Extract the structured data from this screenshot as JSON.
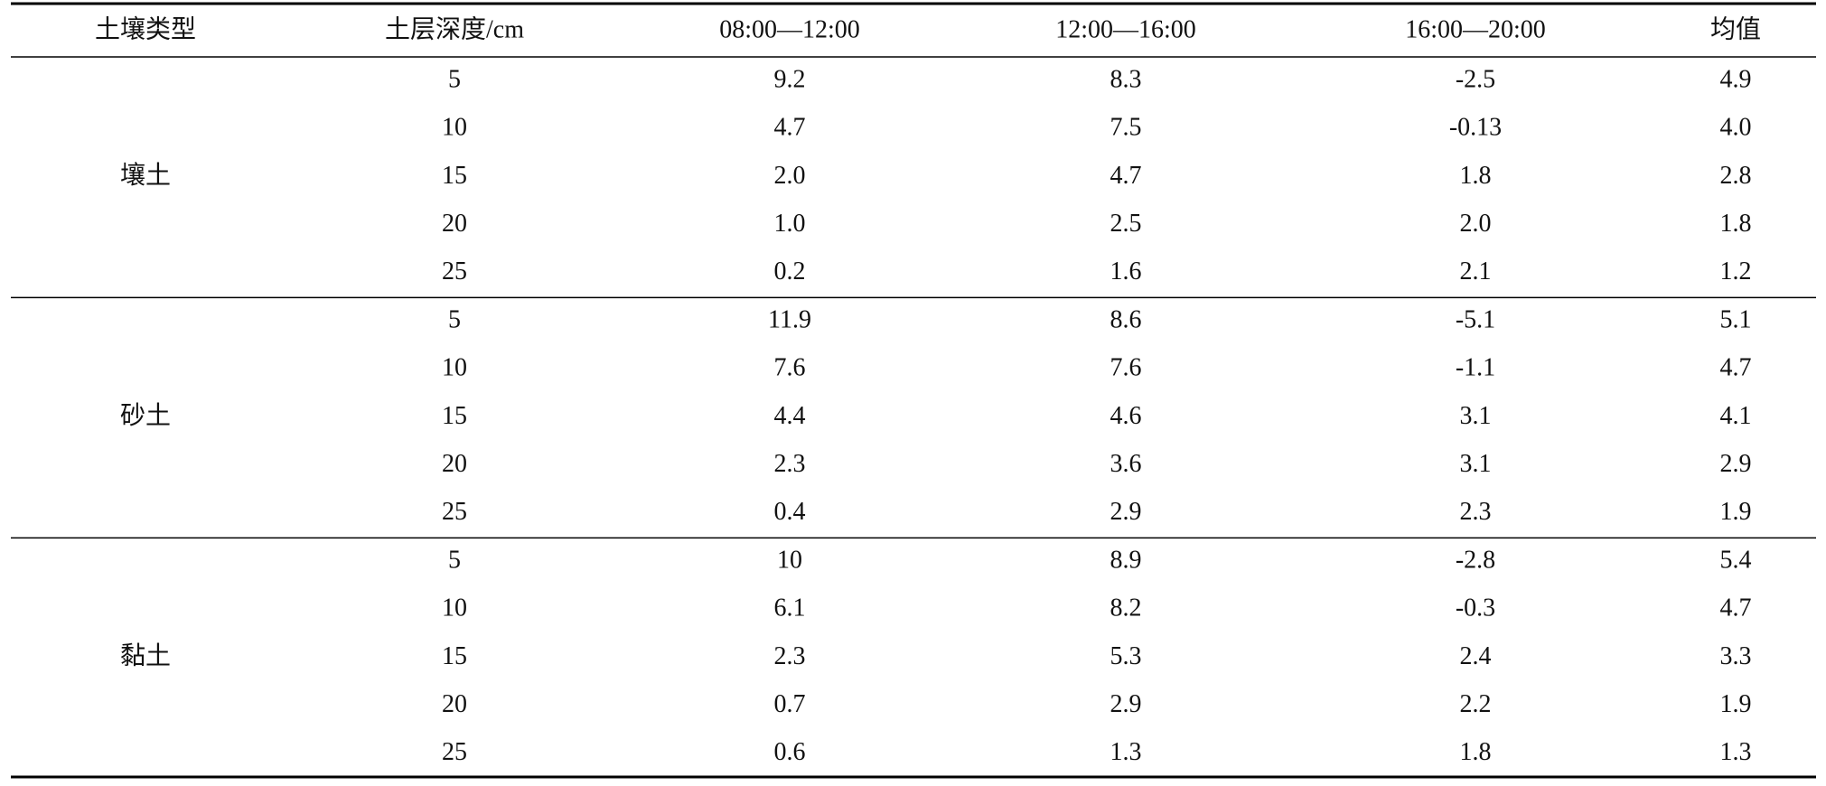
{
  "table": {
    "header": [
      "土壤类型",
      "土层深度/cm",
      "08:00—12:00",
      "12:00—16:00",
      "16:00—20:00",
      "均值"
    ],
    "groups": [
      {
        "soil_type": "壤土",
        "rows": [
          [
            "5",
            "9.2",
            "8.3",
            "-2.5",
            "4.9"
          ],
          [
            "10",
            "4.7",
            "7.5",
            "-0.13",
            "4.0"
          ],
          [
            "15",
            "2.0",
            "4.7",
            "1.8",
            "2.8"
          ],
          [
            "20",
            "1.0",
            "2.5",
            "2.0",
            "1.8"
          ],
          [
            "25",
            "0.2",
            "1.6",
            "2.1",
            "1.2"
          ]
        ]
      },
      {
        "soil_type": "砂土",
        "rows": [
          [
            "5",
            "11.9",
            "8.6",
            "-5.1",
            "5.1"
          ],
          [
            "10",
            "7.6",
            "7.6",
            "-1.1",
            "4.7"
          ],
          [
            "15",
            "4.4",
            "4.6",
            "3.1",
            "4.1"
          ],
          [
            "20",
            "2.3",
            "3.6",
            "3.1",
            "2.9"
          ],
          [
            "25",
            "0.4",
            "2.9",
            "2.3",
            "1.9"
          ]
        ]
      },
      {
        "soil_type": "黏土",
        "rows": [
          [
            "5",
            "10",
            "8.9",
            "-2.8",
            "5.4"
          ],
          [
            "10",
            "6.1",
            "8.2",
            "-0.3",
            "4.7"
          ],
          [
            "15",
            "2.3",
            "5.3",
            "2.4",
            "3.3"
          ],
          [
            "20",
            "0.7",
            "2.9",
            "2.2",
            "1.9"
          ],
          [
            "25",
            "0.6",
            "1.3",
            "1.8",
            "1.3"
          ]
        ]
      }
    ]
  }
}
